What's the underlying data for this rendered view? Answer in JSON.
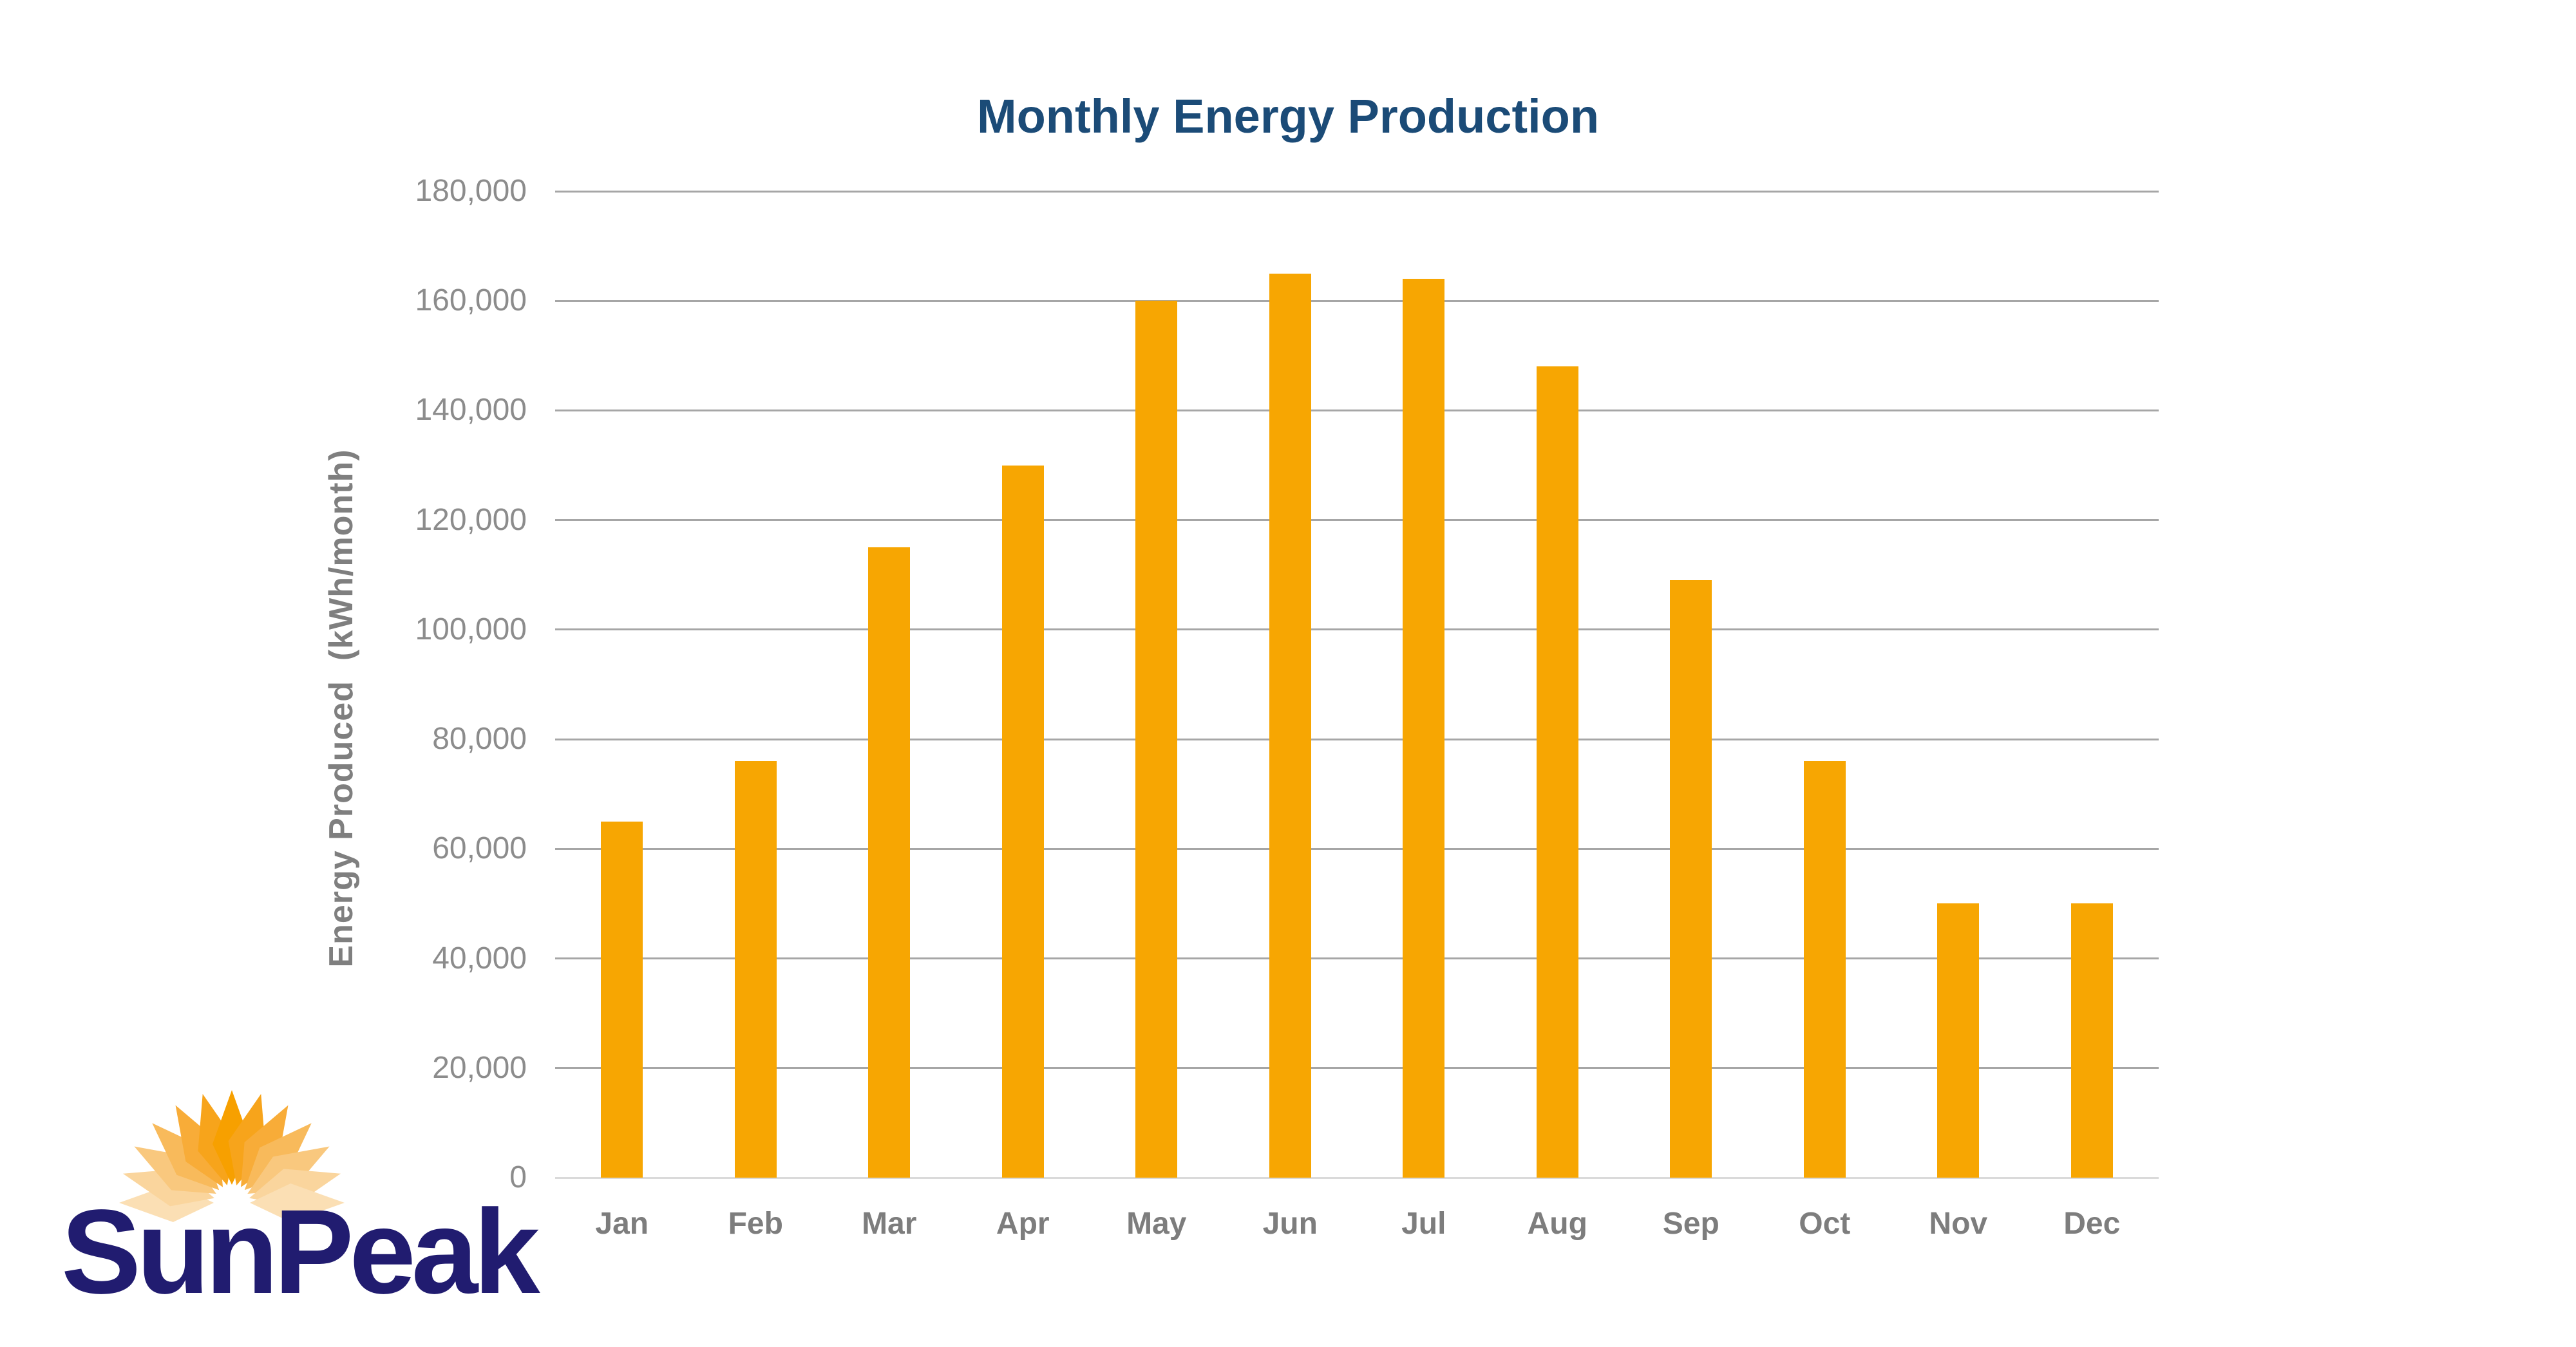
{
  "logo": {
    "text": "SunPeak",
    "text_color": "#211C70",
    "petal_colors": [
      "#FBDFB4",
      "#FAD59D",
      "#F9C87E",
      "#F8BA5B",
      "#F8AC38",
      "#F7A41B",
      "#F7A000",
      "#F7A41B",
      "#F8AC38",
      "#F8BA5B",
      "#F9C87E",
      "#FAD59D",
      "#FBDFB4"
    ]
  },
  "chart_data": {
    "type": "bar",
    "title": "Monthly Energy Production",
    "title_color": "#1B4B77",
    "categories": [
      "Jan",
      "Feb",
      "Mar",
      "Apr",
      "May",
      "Jun",
      "Jul",
      "Aug",
      "Sep",
      "Oct",
      "Nov",
      "Dec"
    ],
    "values": [
      65000,
      76000,
      115000,
      130000,
      160000,
      165000,
      164000,
      148000,
      109000,
      76000,
      50000,
      50000
    ],
    "xlabel": "",
    "ylabel": "Energy Produced  (kWh/month)",
    "ylim": [
      0,
      180000
    ],
    "ytick_step": 20000,
    "ytick_labels": [
      "0",
      "20,000",
      "40,000",
      "60,000",
      "80,000",
      "100,000",
      "120,000",
      "140,000",
      "160,000",
      "180,000"
    ],
    "grid": true,
    "legend": "none",
    "bar_color": "#F7A602",
    "gridline_color": "#A6A6A6",
    "zero_line_color": "#DADADA",
    "ytick_color": "#8C8C8C",
    "month_label_color": "#7D7D7D",
    "axis_title_color": "#7F7F7F"
  }
}
